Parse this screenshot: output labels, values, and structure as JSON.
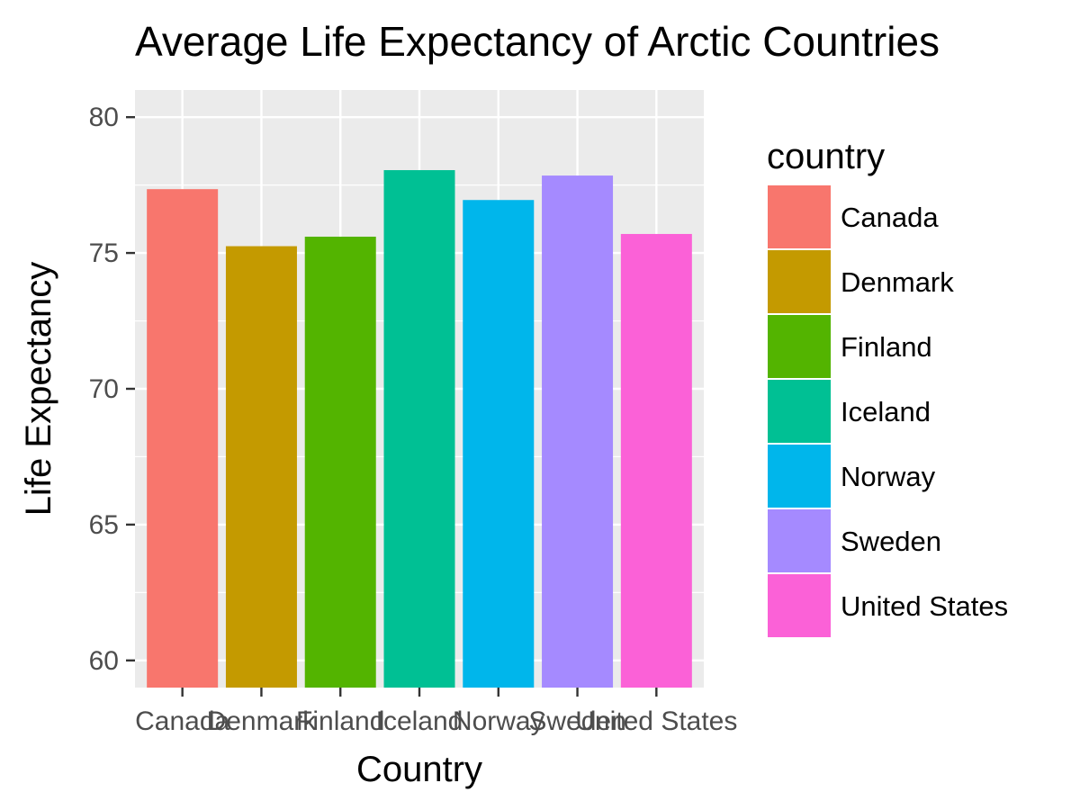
{
  "chart_data": {
    "type": "bar",
    "title": "Average Life Expectancy of Arctic Countries",
    "xlabel": "Country",
    "ylabel": "Life Expectancy",
    "categories": [
      "Canada",
      "Denmark",
      "Finland",
      "Iceland",
      "Norway",
      "Sweden",
      "United States"
    ],
    "values": [
      77.35,
      75.25,
      75.6,
      78.05,
      76.95,
      77.85,
      75.7
    ],
    "ylim": [
      59,
      81
    ],
    "yticks": [
      60,
      65,
      70,
      75,
      80
    ],
    "grid": true,
    "legend": {
      "title": "country",
      "position": "right",
      "entries": [
        "Canada",
        "Denmark",
        "Finland",
        "Iceland",
        "Norway",
        "Sweden",
        "United States"
      ]
    },
    "colors": [
      "#F8766D",
      "#C49A00",
      "#53B400",
      "#00C094",
      "#00B6EB",
      "#A58AFF",
      "#FB61D7"
    ],
    "panel_background": "#EBEBEB",
    "grid_color": "#FFFFFF"
  }
}
